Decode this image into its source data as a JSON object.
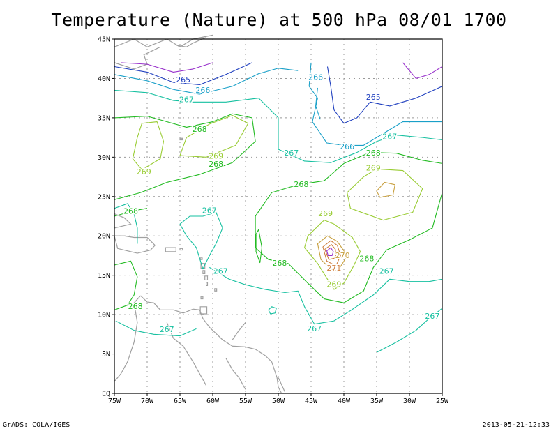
{
  "title": "Temperature (Nature) at 500 hPa 08/01 1700",
  "footer": {
    "credit": "GrADS: COLA/IGES",
    "timestamp": "2013-05-21-12:33"
  },
  "axes": {
    "lat_labels": [
      "45N",
      "40N",
      "35N",
      "30N",
      "25N",
      "20N",
      "15N",
      "10N",
      "5N",
      "EQ"
    ],
    "lon_labels": [
      "75W",
      "70W",
      "65W",
      "60W",
      "55W",
      "50W",
      "45W",
      "40W",
      "35W",
      "30W",
      "25W"
    ]
  },
  "colors": {
    "265": "#1f3fbf",
    "266": "#1aa0c8",
    "267": "#16c0a0",
    "268": "#22bb22",
    "269": "#99cc33",
    "270": "#c8a040",
    "271": "#d08040",
    "264": "#9933cc",
    "coast": "#a0a0a0",
    "grid": "#999999"
  },
  "contour_labels": [
    {
      "text": "265",
      "lon": -64.5,
      "lat": 39.5,
      "level": "265"
    },
    {
      "text": "266",
      "lon": -61.5,
      "lat": 38.2,
      "level": "266"
    },
    {
      "text": "267",
      "lon": -64,
      "lat": 37,
      "level": "267"
    },
    {
      "text": "266",
      "lon": -44.3,
      "lat": 39.8,
      "level": "266"
    },
    {
      "text": "265",
      "lon": -35.5,
      "lat": 37.3,
      "level": "265"
    },
    {
      "text": "268",
      "lon": -62,
      "lat": 33.2,
      "level": "268"
    },
    {
      "text": "269",
      "lon": -59.5,
      "lat": 29.8,
      "level": "269"
    },
    {
      "text": "269",
      "lon": -70.5,
      "lat": 27.8,
      "level": "269"
    },
    {
      "text": "268",
      "lon": -59.5,
      "lat": 28.8,
      "level": "268"
    },
    {
      "text": "267",
      "lon": -48,
      "lat": 30.2,
      "level": "267"
    },
    {
      "text": "266",
      "lon": -39.5,
      "lat": 31,
      "level": "266"
    },
    {
      "text": "267",
      "lon": -33,
      "lat": 32.3,
      "level": "267"
    },
    {
      "text": "268",
      "lon": -35.5,
      "lat": 30.2,
      "level": "268"
    },
    {
      "text": "269",
      "lon": -35.5,
      "lat": 28.3,
      "level": "269"
    },
    {
      "text": "268",
      "lon": -72.5,
      "lat": 22.8,
      "level": "268"
    },
    {
      "text": "268",
      "lon": -46.5,
      "lat": 26.2,
      "level": "268"
    },
    {
      "text": "267",
      "lon": -60.5,
      "lat": 22.9,
      "level": "267"
    },
    {
      "text": "269",
      "lon": -42.8,
      "lat": 22.5,
      "level": "269"
    },
    {
      "text": "270",
      "lon": -40.2,
      "lat": 17.2,
      "level": "270"
    },
    {
      "text": "271",
      "lon": -41.5,
      "lat": 15.6,
      "level": "271"
    },
    {
      "text": "268",
      "lon": -36.5,
      "lat": 16.8,
      "level": "268"
    },
    {
      "text": "268",
      "lon": -49.8,
      "lat": 16.2,
      "level": "268"
    },
    {
      "text": "267",
      "lon": -58.8,
      "lat": 15.2,
      "level": "267"
    },
    {
      "text": "267",
      "lon": -33.5,
      "lat": 15.2,
      "level": "267"
    },
    {
      "text": "269",
      "lon": -41.5,
      "lat": 13.5,
      "level": "269"
    },
    {
      "text": "268",
      "lon": -71.8,
      "lat": 10.7,
      "level": "268"
    },
    {
      "text": "267",
      "lon": -26.5,
      "lat": 9.5,
      "level": "267"
    },
    {
      "text": "267",
      "lon": -67,
      "lat": 7.8,
      "level": "267"
    },
    {
      "text": "267",
      "lon": -44.5,
      "lat": 7.9,
      "level": "267"
    }
  ]
}
